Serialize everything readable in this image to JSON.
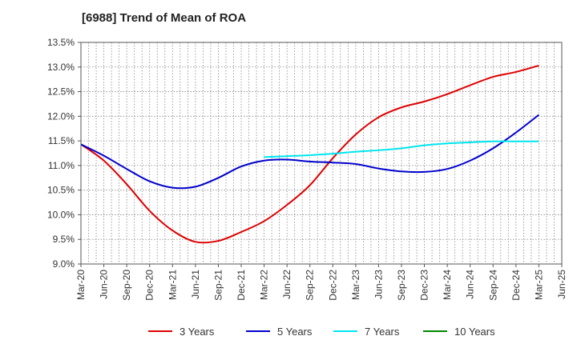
{
  "chart_data": {
    "type": "line",
    "title": "[6988]  Trend of Mean of ROA",
    "xlabel": "",
    "ylabel": "",
    "x_tick_labels": [
      "Mar-20",
      "Jun-20",
      "Sep-20",
      "Dec-20",
      "Mar-21",
      "Jun-21",
      "Sep-21",
      "Dec-21",
      "Mar-22",
      "Jun-22",
      "Sep-22",
      "Dec-22",
      "Mar-23",
      "Jun-23",
      "Sep-23",
      "Dec-23",
      "Mar-24",
      "Jun-24",
      "Sep-24",
      "Dec-24",
      "Mar-25",
      "Jun-25"
    ],
    "y_tick_labels": [
      "9.0%",
      "9.5%",
      "10.0%",
      "10.5%",
      "11.0%",
      "11.5%",
      "12.0%",
      "12.5%",
      "13.0%",
      "13.5%"
    ],
    "y_ticks": [
      9.0,
      9.5,
      10.0,
      10.5,
      11.0,
      11.5,
      12.0,
      12.5,
      13.0,
      13.5
    ],
    "ylim": [
      9.0,
      13.5
    ],
    "grid": true,
    "legend_position": "bottom",
    "series": [
      {
        "name": "3 Years",
        "color": "#dd0000",
        "start_index": 0,
        "values": [
          11.43,
          11.1,
          10.62,
          10.08,
          9.68,
          9.45,
          9.47,
          9.65,
          9.87,
          10.2,
          10.6,
          11.15,
          11.63,
          11.98,
          12.18,
          12.3,
          12.45,
          12.63,
          12.8,
          12.9,
          13.03
        ]
      },
      {
        "name": "5 Years",
        "color": "#0000cc",
        "start_index": 0,
        "values": [
          11.43,
          11.2,
          10.93,
          10.68,
          10.55,
          10.57,
          10.75,
          10.98,
          11.1,
          11.12,
          11.08,
          11.06,
          11.03,
          10.94,
          10.88,
          10.87,
          10.93,
          11.1,
          11.35,
          11.67,
          12.03
        ]
      },
      {
        "name": "7 Years",
        "color": "#00e5ee",
        "start_index": 8,
        "values": [
          11.17,
          11.19,
          11.21,
          11.24,
          11.28,
          11.31,
          11.35,
          11.41,
          11.45,
          11.47,
          11.49,
          11.49,
          11.49
        ]
      },
      {
        "name": "10 Years",
        "color": "#008800",
        "start_index": 0,
        "values": []
      }
    ]
  }
}
